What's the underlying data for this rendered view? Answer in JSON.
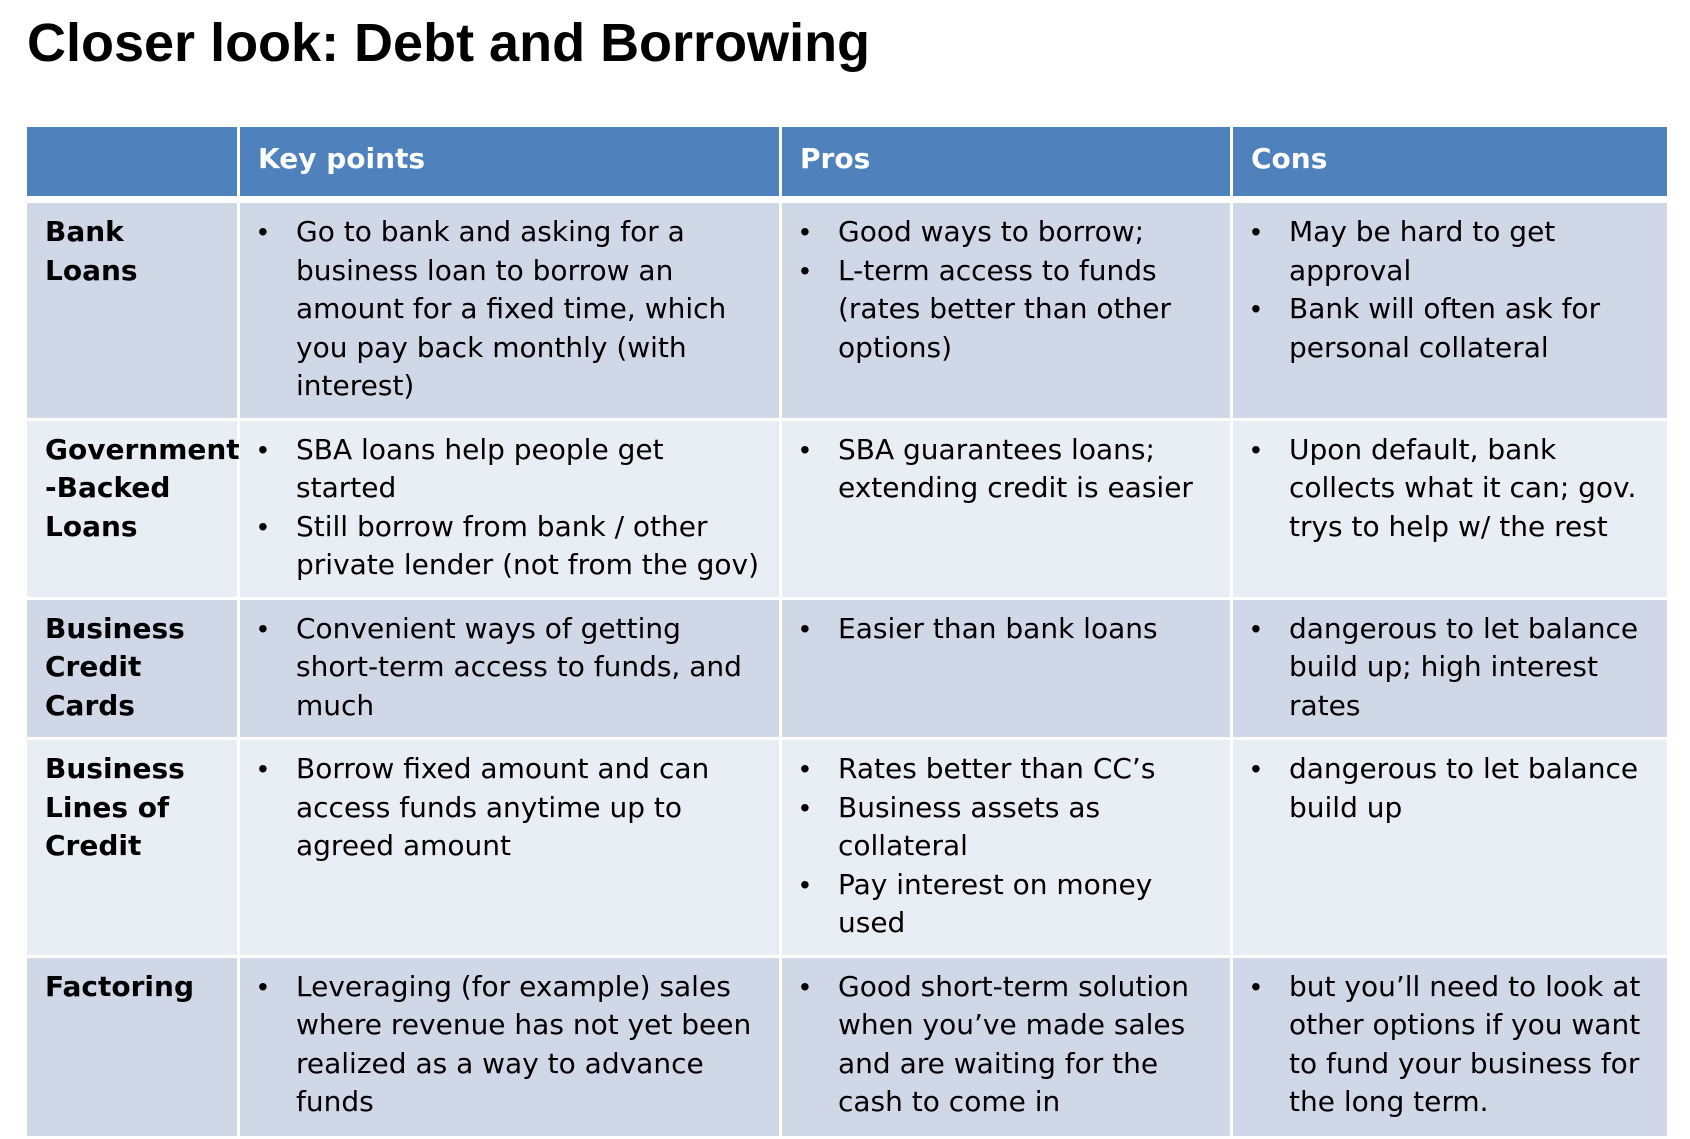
{
  "title": "Closer look: Debt and Borrowing",
  "table": {
    "headers": [
      "",
      "Key points",
      "Pros",
      "Cons"
    ],
    "rows": [
      {
        "label": "Bank Loans",
        "key_points": [
          "Go to bank and asking for a business loan to borrow an amount for a fixed time, which you pay back monthly (with interest)"
        ],
        "pros": [
          "Good ways to borrow;",
          "L-term access to funds (rates better than other options)"
        ],
        "cons": [
          "May be hard to get approval",
          "Bank will often ask for personal collateral"
        ]
      },
      {
        "label": "Government -Backed Loans",
        "key_points": [
          "SBA loans help people get started",
          "Still borrow from bank / other private lender (not from the gov)"
        ],
        "pros": [
          "SBA guarantees loans; extending credit is easier"
        ],
        "cons": [
          "Upon default, bank collects what it can; gov. trys to help w/ the rest"
        ]
      },
      {
        "label": "Business Credit Cards",
        "key_points": [
          "Convenient ways of getting short-term access to funds, and much"
        ],
        "pros": [
          "Easier than bank loans"
        ],
        "cons": [
          "dangerous to let balance build up; high interest rates"
        ]
      },
      {
        "label": "Business Lines of Credit",
        "key_points": [
          "Borrow fixed amount and can access funds anytime up to agreed amount"
        ],
        "pros": [
          "Rates better than CC’s",
          "Business assets as collateral",
          "Pay interest on money used"
        ],
        "cons": [
          "dangerous to let balance build up"
        ]
      },
      {
        "label": "Factoring",
        "key_points": [
          "Leveraging (for example) sales where revenue has not yet been realized as a way to advance funds"
        ],
        "pros": [
          "Good short-term solution when you’ve made sales and are waiting for the cash to come in"
        ],
        "cons": [
          "but you’ll need to look at other options if you want to fund your business for the long term."
        ]
      }
    ]
  },
  "colors": {
    "header_bg": "#4f81bd",
    "row_odd_bg": "#d0d8e8",
    "row_even_bg": "#e9edf4",
    "header_text": "#ffffff"
  }
}
